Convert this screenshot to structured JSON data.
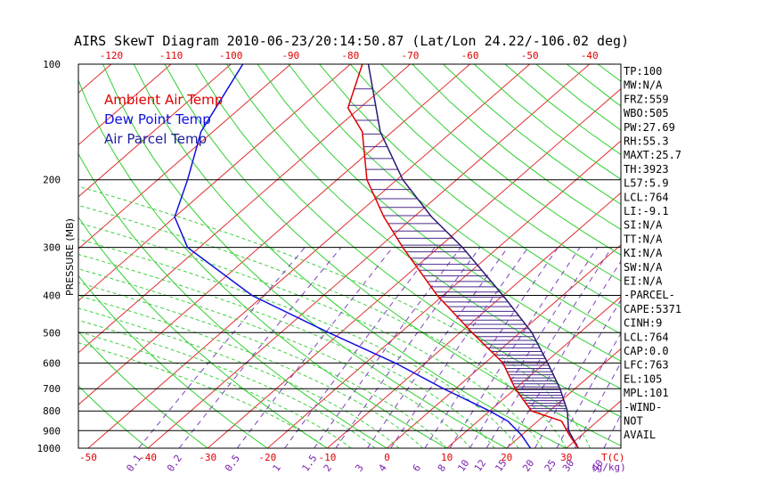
{
  "chart_data": {
    "type": "skew-t",
    "title": "AIRS SkewT Diagram 2010-06-23/20:14:50.87 (Lat/Lon 24.22/-106.02 deg)",
    "ylabel": "PRESSURE (MB)",
    "pressure_ticks": [
      100,
      200,
      300,
      400,
      500,
      600,
      700,
      800,
      900,
      1000
    ],
    "top_temp_ticks": [
      -120,
      -110,
      -100,
      -90,
      -80,
      -70,
      -60,
      -50,
      -40
    ],
    "bottom_temp_ticks": [
      -50,
      -40,
      -30,
      -20,
      -10,
      0,
      10,
      20,
      30
    ],
    "bottom_temp_unit": "T(C)",
    "mixing_ratio_ticks": [
      "0.1",
      "0.2",
      "0.5",
      "1",
      "1.5",
      "2",
      "3",
      "4",
      "6",
      "8",
      "10",
      "12",
      "15",
      "20",
      "25",
      "30",
      "40"
    ],
    "mixing_ratio_unit": "(g/kg)",
    "legend": [
      {
        "label": "Ambient Air Temp",
        "color": "#e00000"
      },
      {
        "label": "Dew Point Temp",
        "color": "#1010e0"
      },
      {
        "label": "Air Parcel Temp",
        "color": "#2020a0"
      }
    ],
    "temperature_profile": [
      {
        "p": 1000,
        "t": 32
      },
      {
        "p": 925,
        "t": 28
      },
      {
        "p": 850,
        "t": 24
      },
      {
        "p": 800,
        "t": 17
      },
      {
        "p": 700,
        "t": 10
      },
      {
        "p": 600,
        "t": 3
      },
      {
        "p": 500,
        "t": -8
      },
      {
        "p": 400,
        "t": -21
      },
      {
        "p": 300,
        "t": -36
      },
      {
        "p": 250,
        "t": -45
      },
      {
        "p": 200,
        "t": -55
      },
      {
        "p": 150,
        "t": -65
      },
      {
        "p": 130,
        "t": -72
      },
      {
        "p": 100,
        "t": -78
      }
    ],
    "dewpoint_profile": [
      {
        "p": 1000,
        "t": 24
      },
      {
        "p": 925,
        "t": 20
      },
      {
        "p": 850,
        "t": 15
      },
      {
        "p": 800,
        "t": 10
      },
      {
        "p": 700,
        "t": -2
      },
      {
        "p": 600,
        "t": -15
      },
      {
        "p": 500,
        "t": -32
      },
      {
        "p": 400,
        "t": -52
      },
      {
        "p": 300,
        "t": -72
      },
      {
        "p": 250,
        "t": -80
      },
      {
        "p": 200,
        "t": -85
      },
      {
        "p": 150,
        "t": -92
      },
      {
        "p": 100,
        "t": -98
      }
    ],
    "parcel_profile": [
      {
        "p": 1000,
        "t": 32
      },
      {
        "p": 900,
        "t": 27
      },
      {
        "p": 800,
        "t": 23
      },
      {
        "p": 700,
        "t": 17.5
      },
      {
        "p": 600,
        "t": 10.5
      },
      {
        "p": 500,
        "t": 2
      },
      {
        "p": 400,
        "t": -10
      },
      {
        "p": 300,
        "t": -26
      },
      {
        "p": 250,
        "t": -37
      },
      {
        "p": 200,
        "t": -49
      },
      {
        "p": 150,
        "t": -62
      },
      {
        "p": 100,
        "t": -77
      }
    ],
    "parameters": [
      "TP:100",
      "MW:N/A",
      "FRZ:559",
      "WBO:505",
      "PW:27.69",
      "RH:55.3",
      "MAXT:25.7",
      "TH:3923",
      "L57:5.9",
      "LCL:764",
      "LI:-9.1",
      "SI:N/A",
      "TT:N/A",
      "KI:N/A",
      "SW:N/A",
      "EI:N/A",
      "-PARCEL-",
      "CAPE:5371",
      "CINH:9",
      "LCL:764",
      "CAP:0.0",
      "LFC:763",
      "EL:105",
      "MPL:101",
      "-WIND-",
      "NOT",
      "AVAIL"
    ]
  }
}
